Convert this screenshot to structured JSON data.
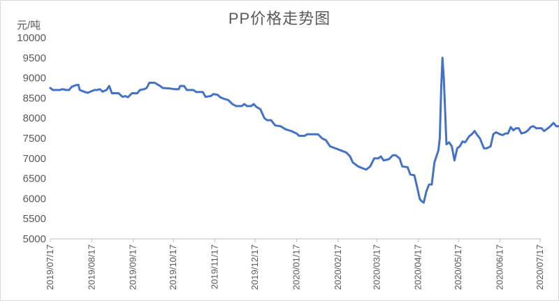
{
  "chart_data": {
    "type": "line",
    "title": "PP价格走势图",
    "ylabel": "元/吨",
    "xlabel": "",
    "ylim": [
      5000,
      10000
    ],
    "yticks": [
      5000,
      5500,
      6000,
      6500,
      7000,
      7500,
      8000,
      8500,
      9000,
      9500,
      10000
    ],
    "xlim": [
      "2019-07-17",
      "2020-07-17"
    ],
    "xticks": [
      "2019/07/17",
      "2019/08/17",
      "2019/09/17",
      "2019/10/17",
      "2019/11/17",
      "2019/12/17",
      "2020/01/17",
      "2020/02/17",
      "2020/03/17",
      "2020/04/17",
      "2020/05/17",
      "2020/06/17",
      "2020/07/17"
    ],
    "grid": false,
    "legend": "none",
    "series": [
      {
        "color": "#4472c4",
        "points": [
          [
            "2019-07-17",
            8750
          ],
          [
            "2019-07-19",
            8700
          ],
          [
            "2019-07-24",
            8700
          ],
          [
            "2019-07-26",
            8720
          ],
          [
            "2019-07-29",
            8700
          ],
          [
            "2019-07-31",
            8700
          ],
          [
            "2019-08-02",
            8780
          ],
          [
            "2019-08-05",
            8820
          ],
          [
            "2019-08-07",
            8830
          ],
          [
            "2019-08-08",
            8700
          ],
          [
            "2019-08-12",
            8650
          ],
          [
            "2019-08-14",
            8630
          ],
          [
            "2019-08-16",
            8660
          ],
          [
            "2019-08-19",
            8700
          ],
          [
            "2019-08-21",
            8700
          ],
          [
            "2019-08-23",
            8720
          ],
          [
            "2019-08-25",
            8660
          ],
          [
            "2019-08-28",
            8700
          ],
          [
            "2019-08-30",
            8800
          ],
          [
            "2019-09-01",
            8620
          ],
          [
            "2019-09-06",
            8620
          ],
          [
            "2019-09-09",
            8530
          ],
          [
            "2019-09-11",
            8550
          ],
          [
            "2019-09-13",
            8520
          ],
          [
            "2019-09-16",
            8620
          ],
          [
            "2019-09-18",
            8620
          ],
          [
            "2019-09-20",
            8620
          ],
          [
            "2019-09-22",
            8700
          ],
          [
            "2019-09-25",
            8720
          ],
          [
            "2019-09-27",
            8750
          ],
          [
            "2019-09-29",
            8880
          ],
          [
            "2019-10-03",
            8880
          ],
          [
            "2019-10-05",
            8840
          ],
          [
            "2019-10-07",
            8800
          ],
          [
            "2019-10-09",
            8750
          ],
          [
            "2019-10-14",
            8740
          ],
          [
            "2019-10-18",
            8720
          ],
          [
            "2019-10-21",
            8720
          ],
          [
            "2019-10-22",
            8800
          ],
          [
            "2019-10-25",
            8800
          ],
          [
            "2019-10-27",
            8700
          ],
          [
            "2019-11-01",
            8700
          ],
          [
            "2019-11-03",
            8650
          ],
          [
            "2019-11-08",
            8650
          ],
          [
            "2019-11-10",
            8530
          ],
          [
            "2019-11-14",
            8550
          ],
          [
            "2019-11-16",
            8600
          ],
          [
            "2019-11-19",
            8580
          ],
          [
            "2019-11-21",
            8520
          ],
          [
            "2019-11-24",
            8480
          ],
          [
            "2019-11-27",
            8450
          ],
          [
            "2019-11-30",
            8350
          ],
          [
            "2019-12-03",
            8300
          ],
          [
            "2019-12-07",
            8300
          ],
          [
            "2019-12-09",
            8350
          ],
          [
            "2019-12-11",
            8300
          ],
          [
            "2019-12-14",
            8300
          ],
          [
            "2019-12-16",
            8350
          ],
          [
            "2019-12-18",
            8280
          ],
          [
            "2019-12-21",
            8220
          ],
          [
            "2019-12-24",
            8000
          ],
          [
            "2019-12-26",
            7950
          ],
          [
            "2019-12-29",
            7950
          ],
          [
            "2020-01-01",
            7820
          ],
          [
            "2020-01-05",
            7800
          ],
          [
            "2020-01-09",
            7720
          ],
          [
            "2020-01-13",
            7680
          ],
          [
            "2020-01-17",
            7620
          ],
          [
            "2020-01-19",
            7560
          ],
          [
            "2020-01-23",
            7560
          ],
          [
            "2020-01-25",
            7600
          ],
          [
            "2020-02-02",
            7600
          ],
          [
            "2020-02-05",
            7500
          ],
          [
            "2020-02-08",
            7450
          ],
          [
            "2020-02-11",
            7300
          ],
          [
            "2020-02-15",
            7250
          ],
          [
            "2020-02-19",
            7200
          ],
          [
            "2020-02-23",
            7150
          ],
          [
            "2020-02-26",
            7050
          ],
          [
            "2020-02-28",
            6900
          ],
          [
            "2020-03-03",
            6800
          ],
          [
            "2020-03-06",
            6760
          ],
          [
            "2020-03-09",
            6720
          ],
          [
            "2020-03-12",
            6800
          ],
          [
            "2020-03-15",
            7000
          ],
          [
            "2020-03-18",
            7000
          ],
          [
            "2020-03-20",
            7050
          ],
          [
            "2020-03-22",
            6950
          ],
          [
            "2020-03-26",
            6980
          ],
          [
            "2020-03-29",
            7080
          ],
          [
            "2020-03-31",
            7080
          ],
          [
            "2020-04-03",
            7000
          ],
          [
            "2020-04-05",
            6800
          ],
          [
            "2020-04-09",
            6780
          ],
          [
            "2020-04-11",
            6600
          ],
          [
            "2020-04-14",
            6580
          ],
          [
            "2020-04-16",
            6300
          ],
          [
            "2020-04-18",
            6000
          ],
          [
            "2020-04-19",
            5950
          ],
          [
            "2020-04-21",
            5900
          ],
          [
            "2020-04-23",
            6180
          ],
          [
            "2020-04-25",
            6350
          ],
          [
            "2020-04-27",
            6350
          ],
          [
            "2020-04-29",
            6900
          ],
          [
            "2020-05-02",
            7200
          ],
          [
            "2020-05-03",
            7500
          ],
          [
            "2020-05-04",
            8700
          ],
          [
            "2020-05-05",
            9500
          ],
          [
            "2020-05-06",
            9000
          ],
          [
            "2020-05-07",
            8200
          ],
          [
            "2020-05-08",
            7350
          ],
          [
            "2020-05-10",
            7400
          ],
          [
            "2020-05-12",
            7300
          ],
          [
            "2020-05-14",
            6950
          ],
          [
            "2020-05-16",
            7250
          ],
          [
            "2020-05-18",
            7300
          ],
          [
            "2020-05-20",
            7420
          ],
          [
            "2020-05-22",
            7400
          ],
          [
            "2020-05-25",
            7550
          ],
          [
            "2020-05-27",
            7600
          ],
          [
            "2020-05-29",
            7680
          ],
          [
            "2020-05-31",
            7580
          ],
          [
            "2020-06-02",
            7500
          ],
          [
            "2020-06-05",
            7250
          ],
          [
            "2020-06-07",
            7250
          ],
          [
            "2020-06-10",
            7300
          ],
          [
            "2020-06-12",
            7600
          ],
          [
            "2020-06-14",
            7650
          ],
          [
            "2020-06-17",
            7600
          ],
          [
            "2020-06-19",
            7580
          ],
          [
            "2020-06-21",
            7620
          ],
          [
            "2020-06-23",
            7620
          ],
          [
            "2020-06-25",
            7780
          ],
          [
            "2020-06-27",
            7700
          ],
          [
            "2020-06-29",
            7750
          ],
          [
            "2020-07-01",
            7750
          ],
          [
            "2020-07-03",
            7620
          ],
          [
            "2020-07-06",
            7650
          ],
          [
            "2020-07-08",
            7700
          ],
          [
            "2020-07-10",
            7780
          ],
          [
            "2020-07-12",
            7800
          ],
          [
            "2020-07-14",
            7750
          ],
          [
            "2020-07-16",
            7750
          ],
          [
            "2020-07-18",
            7750
          ],
          [
            "2020-07-20",
            7680
          ],
          [
            "2020-07-24",
            7780
          ],
          [
            "2020-07-27",
            7880
          ],
          [
            "2020-07-29",
            7800
          ],
          [
            "2020-08-01",
            7800
          ],
          [
            "2020-08-03",
            7720
          ]
        ]
      }
    ]
  }
}
